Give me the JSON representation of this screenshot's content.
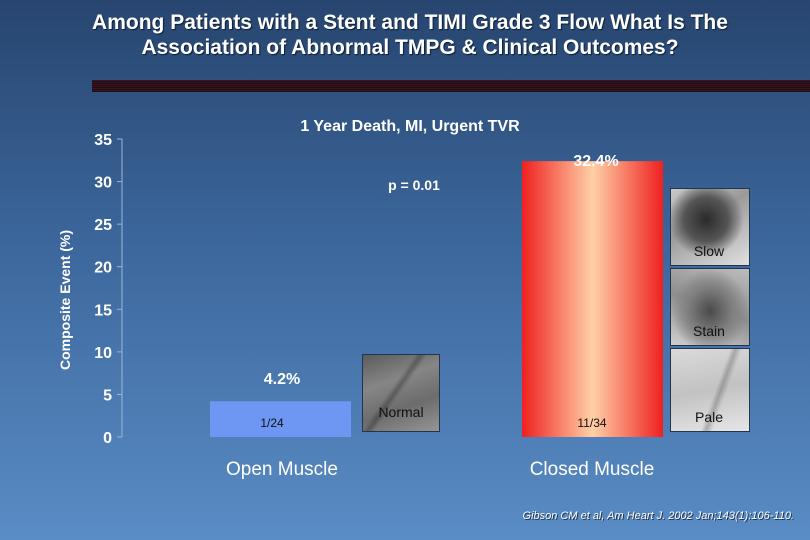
{
  "slide": {
    "title_line1": "Among Patients with a Stent and TIMI Grade 3 Flow What Is The",
    "title_line2": "Association of Abnormal TMPG & Clinical Outcomes?",
    "citation": "Gibson CM et al, Am Heart J. 2002 Jan;143(1):106-110."
  },
  "chart_data": {
    "type": "bar",
    "title": "1 Year Death, MI, Urgent TVR",
    "ylabel": "Composite Event (%)",
    "xlabel": "",
    "ylim": [
      0,
      35
    ],
    "yticks": [
      0,
      5,
      10,
      15,
      20,
      25,
      30,
      35
    ],
    "categories": [
      "Open Muscle",
      "Closed Muscle"
    ],
    "values": [
      4.2,
      32.4
    ],
    "value_labels": [
      "4.2%",
      "32.4%"
    ],
    "counts": [
      "1/24",
      "11/34"
    ],
    "annotation": "p = 0.01",
    "grid": false,
    "colors": {
      "open_bar": "#6d97f2",
      "closed_bar_edge": "#ef2020",
      "closed_bar_center": "#ffd0a6",
      "axis_text": "#ffffff"
    }
  },
  "thumbnails": {
    "normal": {
      "label": "Normal",
      "icon": "angiogram-normal-image"
    },
    "slow": {
      "label": "Slow",
      "icon": "angiogram-slow-image"
    },
    "stain": {
      "label": "Stain",
      "icon": "angiogram-stain-image"
    },
    "pale": {
      "label": "Pale",
      "icon": "angiogram-pale-image"
    }
  }
}
